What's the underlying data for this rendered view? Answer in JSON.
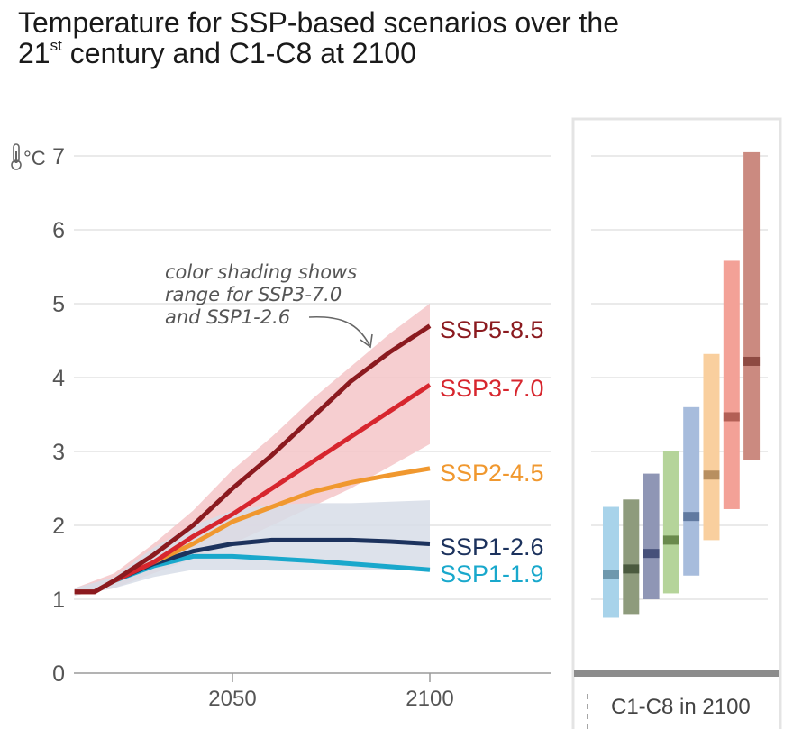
{
  "title_line1": "Temperature for SSP-based scenarios over the",
  "title_num": "21",
  "title_sup": "st",
  "title_rest": "century and C1-C8 at 2100",
  "unit": "°C",
  "annotation": [
    "color shading shows",
    "range for SSP3-7.0",
    "and SSP1-2.6"
  ],
  "chart_data": [
    {
      "type": "line",
      "title": "Temperature for SSP-based scenarios over the 21st century and C1-C8 at 2100",
      "ylabel": "°C",
      "ylim": [
        0,
        7
      ],
      "yticks": [
        0,
        1,
        2,
        3,
        4,
        5,
        6,
        7
      ],
      "xticks": [
        2050,
        2100
      ],
      "grid": true,
      "series": [
        {
          "name": "SSP5-8.5",
          "color": "#8b1a1f",
          "x": [
            2010,
            2015,
            2020,
            2030,
            2040,
            2050,
            2060,
            2070,
            2080,
            2090,
            2100
          ],
          "y": [
            1.1,
            1.1,
            1.25,
            1.6,
            2.0,
            2.5,
            2.95,
            3.45,
            3.95,
            4.35,
            4.7
          ]
        },
        {
          "name": "SSP3-7.0",
          "color": "#d7262e",
          "x": [
            2010,
            2015,
            2020,
            2030,
            2040,
            2050,
            2060,
            2070,
            2080,
            2090,
            2100
          ],
          "y": [
            1.1,
            1.1,
            1.25,
            1.5,
            1.85,
            2.15,
            2.5,
            2.85,
            3.2,
            3.55,
            3.9
          ]
        },
        {
          "name": "SSP2-4.5",
          "color": "#f0982f",
          "x": [
            2010,
            2015,
            2020,
            2030,
            2040,
            2050,
            2060,
            2070,
            2080,
            2090,
            2100
          ],
          "y": [
            1.1,
            1.1,
            1.25,
            1.5,
            1.75,
            2.05,
            2.25,
            2.45,
            2.58,
            2.68,
            2.77
          ]
        },
        {
          "name": "SSP1-2.6",
          "color": "#1c325d",
          "x": [
            2010,
            2015,
            2020,
            2030,
            2040,
            2050,
            2060,
            2070,
            2080,
            2090,
            2100
          ],
          "y": [
            1.1,
            1.1,
            1.25,
            1.48,
            1.65,
            1.75,
            1.8,
            1.8,
            1.8,
            1.78,
            1.75
          ]
        },
        {
          "name": "SSP1-1.9",
          "color": "#19a8cc",
          "x": [
            2010,
            2015,
            2020,
            2030,
            2040,
            2050,
            2060,
            2070,
            2080,
            2090,
            2100
          ],
          "y": [
            1.1,
            1.1,
            1.25,
            1.45,
            1.58,
            1.58,
            1.55,
            1.52,
            1.48,
            1.44,
            1.4
          ]
        }
      ],
      "bands": [
        {
          "series": "SSP3-7.0",
          "color": "#f4c6c8",
          "x": [
            2010,
            2020,
            2030,
            2040,
            2050,
            2060,
            2070,
            2080,
            2090,
            2100
          ],
          "low": [
            1.05,
            1.15,
            1.35,
            1.55,
            1.75,
            2.0,
            2.25,
            2.5,
            2.8,
            3.1
          ],
          "high": [
            1.15,
            1.35,
            1.75,
            2.2,
            2.75,
            3.2,
            3.7,
            4.15,
            4.6,
            5.0
          ]
        },
        {
          "series": "SSP1-2.6",
          "color": "#d7dde8",
          "x": [
            2010,
            2020,
            2030,
            2040,
            2050,
            2060,
            2070,
            2080,
            2090,
            2100
          ],
          "low": [
            1.05,
            1.15,
            1.3,
            1.4,
            1.4,
            1.4,
            1.4,
            1.4,
            1.4,
            1.4
          ],
          "high": [
            1.15,
            1.3,
            1.7,
            2.0,
            2.2,
            2.28,
            2.3,
            2.3,
            2.32,
            2.34
          ]
        }
      ]
    },
    {
      "type": "bar",
      "title": "C1-C8 in 2100",
      "ylim": [
        0,
        7
      ],
      "grid": true,
      "ranges": [
        {
          "low": 0.75,
          "high": 2.25,
          "median": 1.33,
          "color": "#a8d3ea",
          "mid_color": "#6e98ad"
        },
        {
          "low": 0.8,
          "high": 2.35,
          "median": 1.41,
          "color": "#8e9b7c",
          "mid_color": "#4b5a3e"
        },
        {
          "low": 1.0,
          "high": 2.7,
          "median": 1.62,
          "color": "#8f96b5",
          "mid_color": "#46507a"
        },
        {
          "low": 1.08,
          "high": 3.0,
          "median": 1.8,
          "color": "#b5d49a",
          "mid_color": "#6a8a4c"
        },
        {
          "low": 1.32,
          "high": 3.6,
          "median": 2.12,
          "color": "#a7bcdc",
          "mid_color": "#6079a0"
        },
        {
          "low": 1.8,
          "high": 4.32,
          "median": 2.68,
          "color": "#f9cf9e",
          "mid_color": "#b88f60"
        },
        {
          "low": 2.22,
          "high": 5.58,
          "median": 3.47,
          "color": "#f3a197",
          "mid_color": "#b35f55"
        },
        {
          "low": 2.88,
          "high": 7.05,
          "median": 4.22,
          "color": "#cb8a80",
          "mid_color": "#8e4a42"
        }
      ]
    }
  ]
}
